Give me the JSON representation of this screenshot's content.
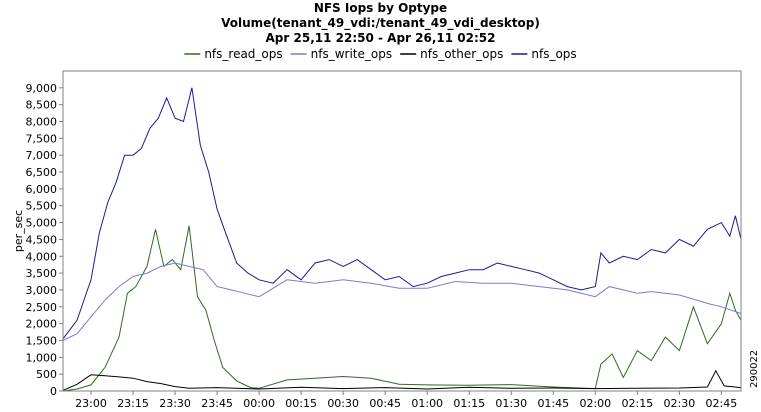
{
  "chart_data": {
    "type": "line",
    "title": "NFS Iops by Optype",
    "subtitle": "Volume(tenant_49_vdi:/tenant_49_vdi_desktop)",
    "date_range": "Apr 25,11 22:50 - Apr 26,11 02:52",
    "ylabel": "per_sec",
    "xlabel": "",
    "watermark": "290022",
    "x_range": [
      "22:50",
      "02:52"
    ],
    "x_ticks": [
      "23:00",
      "23:15",
      "23:30",
      "23:45",
      "00:00",
      "00:15",
      "00:30",
      "00:45",
      "01:00",
      "01:15",
      "01:30",
      "01:45",
      "02:00",
      "02:15",
      "02:30",
      "02:45"
    ],
    "ylim": [
      0,
      9500
    ],
    "y_ticks": [
      "0",
      "500",
      "1,000",
      "1,500",
      "2,000",
      "2,500",
      "3,000",
      "3,500",
      "4,000",
      "4,500",
      "5,000",
      "5,500",
      "6,000",
      "6,500",
      "7,000",
      "7,500",
      "8,000",
      "8,500",
      "9,000"
    ],
    "y_tick_values": [
      0,
      500,
      1000,
      1500,
      2000,
      2500,
      3000,
      3500,
      4000,
      4500,
      5000,
      5500,
      6000,
      6500,
      7000,
      7500,
      8000,
      8500,
      9000
    ],
    "grid": false,
    "legend_position": "top",
    "series": [
      {
        "name": "nfs_read_ops",
        "color": "#2e6b1f",
        "points": [
          [
            "22:50",
            0
          ],
          [
            "22:55",
            60
          ],
          [
            "23:00",
            180
          ],
          [
            "23:05",
            700
          ],
          [
            "23:10",
            1600
          ],
          [
            "23:13",
            2900
          ],
          [
            "23:16",
            3100
          ],
          [
            "23:20",
            3700
          ],
          [
            "23:23",
            4800
          ],
          [
            "23:26",
            3700
          ],
          [
            "23:29",
            3900
          ],
          [
            "23:32",
            3600
          ],
          [
            "23:35",
            4900
          ],
          [
            "23:38",
            2800
          ],
          [
            "23:41",
            2400
          ],
          [
            "23:44",
            1500
          ],
          [
            "23:47",
            700
          ],
          [
            "23:52",
            300
          ],
          [
            "23:57",
            100
          ],
          [
            "00:00",
            80
          ],
          [
            "00:10",
            330
          ],
          [
            "00:20",
            380
          ],
          [
            "00:30",
            430
          ],
          [
            "00:40",
            380
          ],
          [
            "00:50",
            200
          ],
          [
            "01:00",
            180
          ],
          [
            "01:15",
            170
          ],
          [
            "01:30",
            190
          ],
          [
            "01:45",
            120
          ],
          [
            "02:00",
            70
          ],
          [
            "02:02",
            800
          ],
          [
            "02:06",
            1100
          ],
          [
            "02:10",
            400
          ],
          [
            "02:15",
            1200
          ],
          [
            "02:20",
            900
          ],
          [
            "02:25",
            1600
          ],
          [
            "02:30",
            1200
          ],
          [
            "02:35",
            2500
          ],
          [
            "02:40",
            1400
          ],
          [
            "02:45",
            2000
          ],
          [
            "02:48",
            2900
          ],
          [
            "02:50",
            2400
          ],
          [
            "02:52",
            2100
          ]
        ]
      },
      {
        "name": "nfs_write_ops",
        "color": "#7b7bd0",
        "points": [
          [
            "22:50",
            1500
          ],
          [
            "22:55",
            1700
          ],
          [
            "23:00",
            2200
          ],
          [
            "23:05",
            2700
          ],
          [
            "23:10",
            3100
          ],
          [
            "23:15",
            3400
          ],
          [
            "23:20",
            3500
          ],
          [
            "23:25",
            3700
          ],
          [
            "23:30",
            3800
          ],
          [
            "23:35",
            3700
          ],
          [
            "23:40",
            3600
          ],
          [
            "23:45",
            3100
          ],
          [
            "23:50",
            3000
          ],
          [
            "23:55",
            2900
          ],
          [
            "00:00",
            2800
          ],
          [
            "00:10",
            3300
          ],
          [
            "00:20",
            3200
          ],
          [
            "00:30",
            3300
          ],
          [
            "00:40",
            3200
          ],
          [
            "00:50",
            3050
          ],
          [
            "01:00",
            3050
          ],
          [
            "01:10",
            3250
          ],
          [
            "01:20",
            3200
          ],
          [
            "01:30",
            3200
          ],
          [
            "01:40",
            3100
          ],
          [
            "01:50",
            3000
          ],
          [
            "02:00",
            2800
          ],
          [
            "02:05",
            3100
          ],
          [
            "02:10",
            3000
          ],
          [
            "02:15",
            2900
          ],
          [
            "02:20",
            2950
          ],
          [
            "02:30",
            2850
          ],
          [
            "02:40",
            2600
          ],
          [
            "02:45",
            2500
          ],
          [
            "02:52",
            2300
          ]
        ]
      },
      {
        "name": "nfs_other_ops",
        "color": "#000000",
        "points": [
          [
            "22:50",
            20
          ],
          [
            "22:55",
            200
          ],
          [
            "23:00",
            480
          ],
          [
            "23:05",
            450
          ],
          [
            "23:10",
            420
          ],
          [
            "23:15",
            380
          ],
          [
            "23:20",
            280
          ],
          [
            "23:25",
            220
          ],
          [
            "23:30",
            130
          ],
          [
            "23:35",
            80
          ],
          [
            "23:45",
            100
          ],
          [
            "00:00",
            60
          ],
          [
            "00:15",
            110
          ],
          [
            "00:30",
            70
          ],
          [
            "00:45",
            100
          ],
          [
            "01:00",
            60
          ],
          [
            "01:15",
            110
          ],
          [
            "01:30",
            80
          ],
          [
            "01:45",
            90
          ],
          [
            "02:00",
            70
          ],
          [
            "02:15",
            80
          ],
          [
            "02:30",
            90
          ],
          [
            "02:40",
            120
          ],
          [
            "02:43",
            600
          ],
          [
            "02:46",
            150
          ],
          [
            "02:52",
            100
          ]
        ]
      },
      {
        "name": "nfs_ops",
        "color": "#1a1a9c",
        "points": [
          [
            "22:50",
            1550
          ],
          [
            "22:55",
            2100
          ],
          [
            "23:00",
            3300
          ],
          [
            "23:03",
            4700
          ],
          [
            "23:06",
            5600
          ],
          [
            "23:09",
            6200
          ],
          [
            "23:12",
            7000
          ],
          [
            "23:15",
            7000
          ],
          [
            "23:18",
            7200
          ],
          [
            "23:21",
            7800
          ],
          [
            "23:24",
            8100
          ],
          [
            "23:27",
            8700
          ],
          [
            "23:30",
            8100
          ],
          [
            "23:33",
            8000
          ],
          [
            "23:36",
            9000
          ],
          [
            "23:39",
            7300
          ],
          [
            "23:42",
            6500
          ],
          [
            "23:45",
            5400
          ],
          [
            "23:48",
            4700
          ],
          [
            "23:52",
            3800
          ],
          [
            "23:56",
            3500
          ],
          [
            "00:00",
            3300
          ],
          [
            "00:05",
            3200
          ],
          [
            "00:10",
            3600
          ],
          [
            "00:15",
            3300
          ],
          [
            "00:20",
            3800
          ],
          [
            "00:25",
            3900
          ],
          [
            "00:30",
            3700
          ],
          [
            "00:35",
            3900
          ],
          [
            "00:40",
            3600
          ],
          [
            "00:45",
            3300
          ],
          [
            "00:50",
            3400
          ],
          [
            "00:55",
            3100
          ],
          [
            "01:00",
            3200
          ],
          [
            "01:05",
            3400
          ],
          [
            "01:10",
            3500
          ],
          [
            "01:15",
            3600
          ],
          [
            "01:20",
            3600
          ],
          [
            "01:25",
            3800
          ],
          [
            "01:30",
            3700
          ],
          [
            "01:35",
            3600
          ],
          [
            "01:40",
            3500
          ],
          [
            "01:45",
            3300
          ],
          [
            "01:50",
            3100
          ],
          [
            "01:55",
            3000
          ],
          [
            "02:00",
            3100
          ],
          [
            "02:02",
            4100
          ],
          [
            "02:05",
            3800
          ],
          [
            "02:10",
            4000
          ],
          [
            "02:15",
            3900
          ],
          [
            "02:20",
            4200
          ],
          [
            "02:25",
            4100
          ],
          [
            "02:30",
            4500
          ],
          [
            "02:35",
            4300
          ],
          [
            "02:40",
            4800
          ],
          [
            "02:45",
            5000
          ],
          [
            "02:48",
            4600
          ],
          [
            "02:50",
            5200
          ],
          [
            "02:52",
            4500
          ]
        ]
      }
    ]
  }
}
